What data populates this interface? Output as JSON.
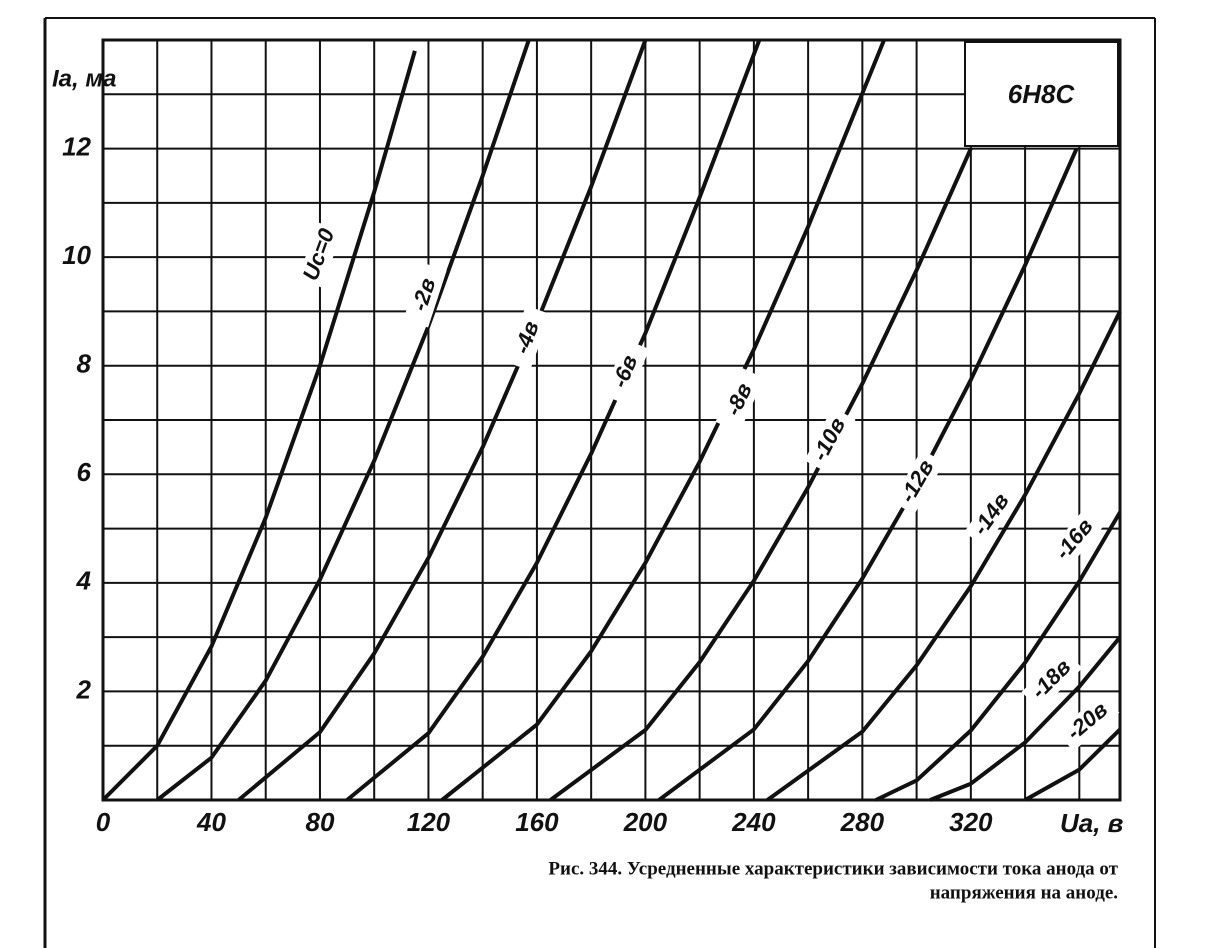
{
  "chart_data": {
    "type": "line",
    "title": "6Н8С",
    "y_label": "Iа, ма",
    "x_label": "Uа, в",
    "caption": [
      "Рис. 344. Усредненные характеристики зависимости тока анода от",
      "напряжения на аноде."
    ],
    "xlim": [
      0,
      375
    ],
    "ylim": [
      0,
      14
    ],
    "xticks": [
      0,
      40,
      80,
      120,
      160,
      200,
      240,
      280,
      320
    ],
    "yticks": [
      2,
      4,
      6,
      8,
      10,
      12
    ],
    "xgrid": [
      0,
      20,
      40,
      60,
      80,
      100,
      120,
      140,
      160,
      180,
      200,
      220,
      240,
      260,
      280,
      300,
      320,
      340,
      360
    ],
    "ygrid": [
      0,
      1,
      2,
      3,
      4,
      5,
      6,
      7,
      8,
      9,
      10,
      11,
      12,
      13,
      14
    ],
    "grid": true,
    "color": "#111111",
    "series": [
      {
        "name": "Uс=0",
        "x": [
          0,
          20,
          40,
          60,
          80,
          100,
          115
        ],
        "values": [
          0,
          1.0,
          2.83,
          5.2,
          8.0,
          11.2,
          13.8
        ]
      },
      {
        "name": "-2в",
        "x": [
          20,
          40,
          60,
          80,
          100,
          120,
          140,
          157
        ],
        "values": [
          0,
          0.78,
          2.2,
          4.06,
          6.25,
          8.73,
          11.5,
          14.0
        ]
      },
      {
        "name": "-4в",
        "x": [
          50,
          80,
          100,
          120,
          140,
          160,
          180,
          200
        ],
        "values": [
          0,
          1.25,
          2.7,
          4.46,
          6.5,
          8.8,
          11.3,
          14.0
        ]
      },
      {
        "name": "-6в",
        "x": [
          90,
          120,
          140,
          160,
          180,
          200,
          220,
          242
        ],
        "values": [
          0,
          1.23,
          2.64,
          4.37,
          6.38,
          8.6,
          11.1,
          14.0
        ]
      },
      {
        "name": "-8в",
        "x": [
          125,
          160,
          180,
          200,
          220,
          240,
          260,
          288
        ],
        "values": [
          0,
          1.39,
          2.74,
          4.37,
          6.23,
          8.3,
          10.56,
          14.0
        ]
      },
      {
        "name": "-10в",
        "x": [
          165,
          200,
          220,
          240,
          260,
          280,
          300,
          320
        ],
        "values": [
          0,
          1.29,
          2.54,
          4.04,
          5.76,
          7.67,
          9.76,
          12.0
        ]
      },
      {
        "name": "-12в",
        "x": [
          205,
          240,
          260,
          280,
          300,
          320,
          340,
          359
        ],
        "values": [
          0,
          1.3,
          2.56,
          4.08,
          5.81,
          7.74,
          9.85,
          12.0
        ]
      },
      {
        "name": "-14в",
        "x": [
          245,
          280,
          300,
          320,
          340,
          360,
          375
        ],
        "values": [
          0,
          1.26,
          2.48,
          3.94,
          5.62,
          7.49,
          9.0
        ]
      },
      {
        "name": "-16в",
        "x": [
          285,
          300,
          320,
          340,
          360,
          375
        ],
        "values": [
          0,
          0.36,
          1.28,
          2.53,
          4.03,
          5.3
        ]
      },
      {
        "name": "-18в",
        "x": [
          305,
          320,
          340,
          360,
          375
        ],
        "values": [
          0,
          0.3,
          1.06,
          2.09,
          3.0
        ]
      },
      {
        "name": "-20в",
        "x": [
          340,
          360,
          375
        ],
        "values": [
          0,
          0.56,
          1.3
        ]
      }
    ]
  }
}
